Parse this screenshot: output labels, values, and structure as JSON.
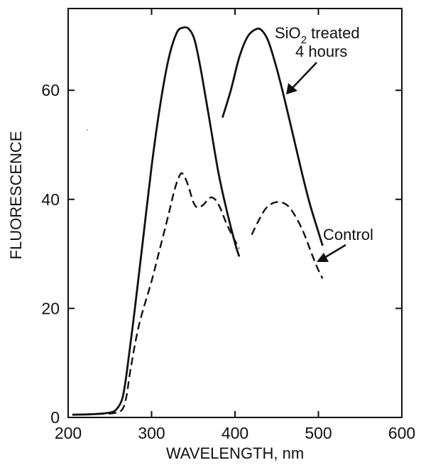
{
  "chart_data": {
    "type": "line",
    "xlabel": "WAVELENGTH, nm",
    "ylabel": "FLUORESCENCE",
    "xlim": [
      200,
      600
    ],
    "ylim": [
      0,
      75
    ],
    "xticks": [
      200,
      300,
      400,
      500,
      600
    ],
    "yticks": [
      0,
      20,
      40,
      60
    ],
    "x_tick_labels": [
      "200",
      "300",
      "400",
      "500",
      "600"
    ],
    "y_tick_labels": [
      "0",
      "20",
      "40",
      "60"
    ],
    "grid": false,
    "annotations": {
      "treated_line1_prefix": "SiO",
      "treated_line1_subscript": "2",
      "treated_line1_suffix": " treated",
      "treated_line2": "4 hours",
      "control": "Control"
    },
    "series": [
      {
        "style": "solid",
        "segments": [
          [
            [
              205,
              0.5
            ],
            [
              230,
              0.6
            ],
            [
              250,
              0.9
            ],
            [
              258,
              1.5
            ],
            [
              265,
              3.5
            ],
            [
              270,
              8
            ],
            [
              280,
              20
            ],
            [
              290,
              33
            ],
            [
              300,
              46
            ],
            [
              310,
              57
            ],
            [
              320,
              65.5
            ],
            [
              330,
              70.5
            ],
            [
              338,
              71.5
            ],
            [
              345,
              71.2
            ],
            [
              352,
              69
            ],
            [
              360,
              63
            ],
            [
              370,
              54
            ],
            [
              380,
              45
            ],
            [
              390,
              38
            ],
            [
              400,
              32
            ],
            [
              405,
              29.5
            ]
          ],
          [
            [
              385,
              55
            ],
            [
              395,
              60
            ],
            [
              405,
              66
            ],
            [
              415,
              69.8
            ],
            [
              425,
              71.2
            ],
            [
              432,
              71
            ],
            [
              440,
              69
            ],
            [
              450,
              64
            ],
            [
              460,
              58
            ],
            [
              470,
              51.5
            ],
            [
              480,
              45
            ],
            [
              490,
              39
            ],
            [
              500,
              34
            ],
            [
              505,
              31.5
            ]
          ]
        ]
      },
      {
        "style": "dashed",
        "segments": [
          [
            [
              205,
              0.5
            ],
            [
              230,
              0.6
            ],
            [
              255,
              0.8
            ],
            [
              265,
              1.5
            ],
            [
              270,
              4
            ],
            [
              275,
              9
            ],
            [
              285,
              17
            ],
            [
              300,
              25
            ],
            [
              310,
              31
            ],
            [
              320,
              37
            ],
            [
              328,
              42
            ],
            [
              335,
              44.7
            ],
            [
              340,
              44
            ],
            [
              345,
              42
            ],
            [
              350,
              39.5
            ],
            [
              355,
              38.5
            ],
            [
              362,
              39
            ],
            [
              370,
              40.3
            ],
            [
              376,
              40
            ],
            [
              382,
              38.5
            ],
            [
              390,
              35.5
            ],
            [
              398,
              33
            ],
            [
              405,
              31
            ]
          ],
          [
            [
              420,
              33.5
            ],
            [
              428,
              36
            ],
            [
              438,
              38.5
            ],
            [
              450,
              39.5
            ],
            [
              462,
              39
            ],
            [
              472,
              37
            ],
            [
              482,
              34
            ],
            [
              492,
              30
            ],
            [
              500,
              27
            ],
            [
              505,
              25.5
            ]
          ]
        ]
      }
    ]
  }
}
